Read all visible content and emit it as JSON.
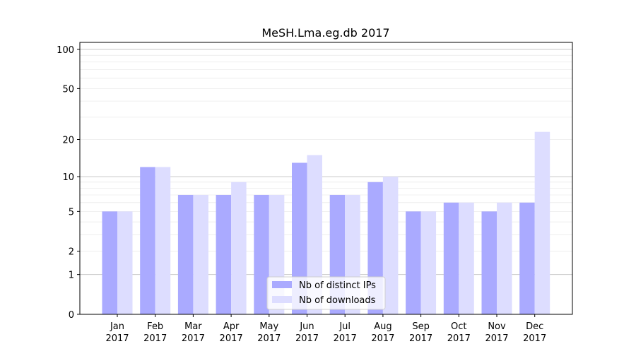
{
  "chart_data": {
    "type": "bar",
    "title": "MeSH.Lma.eg.db 2017",
    "xlabel": "",
    "ylabel": "",
    "yscale": "log10(1+y)",
    "ylim": [
      0,
      113
    ],
    "yticks": [
      0,
      1,
      2,
      5,
      10,
      20,
      50,
      100
    ],
    "grid": true,
    "legend_position": "bottom-center",
    "categories": [
      "Jan\n2017",
      "Feb\n2017",
      "Mar\n2017",
      "Apr\n2017",
      "May\n2017",
      "Jun\n2017",
      "Jul\n2017",
      "Aug\n2017",
      "Sep\n2017",
      "Oct\n2017",
      "Nov\n2017",
      "Dec\n2017"
    ],
    "series": [
      {
        "name": "Nb of distinct IPs",
        "color": "#aaaaff",
        "values": [
          5,
          12,
          7,
          7,
          7,
          13,
          7,
          9,
          5,
          6,
          5,
          6
        ]
      },
      {
        "name": "Nb of downloads",
        "color": "#ddddff",
        "values": [
          5,
          12,
          7,
          9,
          7,
          15,
          7,
          10,
          5,
          6,
          6,
          23
        ]
      }
    ]
  }
}
